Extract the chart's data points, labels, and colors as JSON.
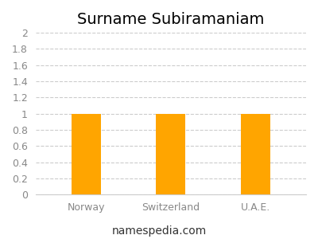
{
  "title": "Surname Subiramaniam",
  "categories": [
    "Norway",
    "Switzerland",
    "U.A.E."
  ],
  "values": [
    1.0,
    1.0,
    1.0
  ],
  "bar_color": "#FFA500",
  "ylim": [
    0,
    2.0
  ],
  "yticks": [
    0,
    0.2,
    0.4,
    0.6,
    0.8,
    1.0,
    1.2,
    1.4,
    1.6,
    1.8,
    2.0
  ],
  "background_color": "#ffffff",
  "grid_color": "#cccccc",
  "title_fontsize": 14,
  "tick_fontsize": 9,
  "footer_text": "namespedia.com",
  "footer_fontsize": 10,
  "bar_width": 0.35
}
